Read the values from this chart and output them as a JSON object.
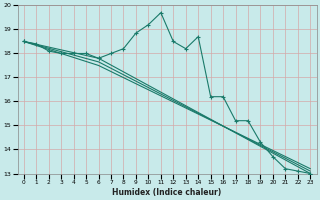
{
  "xlabel": "Humidex (Indice chaleur)",
  "ylabel": "",
  "xlim": [
    -0.5,
    23.5
  ],
  "ylim": [
    13,
    20
  ],
  "yticks": [
    13,
    14,
    15,
    16,
    17,
    18,
    19,
    20
  ],
  "xticks": [
    0,
    1,
    2,
    3,
    4,
    5,
    6,
    7,
    8,
    9,
    10,
    11,
    12,
    13,
    14,
    15,
    16,
    17,
    18,
    19,
    20,
    21,
    22,
    23
  ],
  "bg_color": "#c8eaea",
  "grid_color": "#d4a8a8",
  "line_color": "#1a7a6a",
  "lines": [
    {
      "x": [
        0,
        1,
        2,
        3,
        4,
        5,
        6,
        7,
        8,
        9,
        10,
        11,
        12,
        13,
        14,
        15,
        16,
        17,
        18,
        19,
        20,
        21,
        22,
        23
      ],
      "y": [
        18.5,
        18.4,
        18.1,
        18.0,
        18.0,
        18.0,
        17.8,
        18.0,
        18.2,
        18.85,
        19.2,
        19.7,
        18.5,
        18.2,
        18.7,
        16.2,
        16.2,
        15.2,
        15.2,
        14.3,
        13.7,
        13.2,
        13.1,
        13.0
      ],
      "marker": true
    },
    {
      "x": [
        0,
        6,
        23
      ],
      "y": [
        18.5,
        17.8,
        13.0
      ],
      "marker": true
    },
    {
      "x": [
        0,
        6,
        23
      ],
      "y": [
        18.5,
        17.65,
        13.1
      ],
      "marker": false
    },
    {
      "x": [
        0,
        6,
        23
      ],
      "y": [
        18.5,
        17.5,
        13.2
      ],
      "marker": false
    }
  ]
}
